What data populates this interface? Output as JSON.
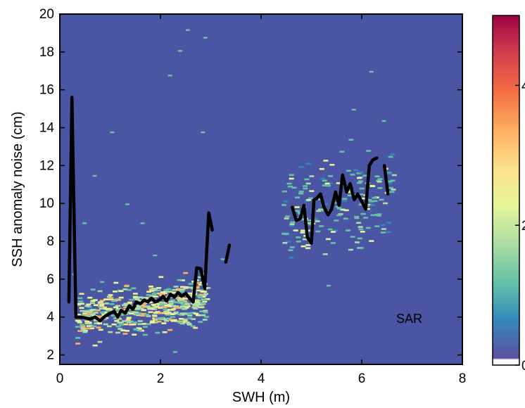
{
  "chart_data": {
    "type": "heatmap",
    "xlabel": "SWH (m)",
    "ylabel": "SSH anomaly noise (cm)",
    "xlim": [
      0,
      8
    ],
    "ylim": [
      1.5,
      20
    ],
    "xticks": [
      0,
      2,
      4,
      6,
      8
    ],
    "yticks": [
      2,
      4,
      6,
      8,
      10,
      12,
      14,
      16,
      18,
      20
    ],
    "annotation": "SAR",
    "background_color": "#4a55a3",
    "grid": false,
    "colorbar": {
      "ticks": [
        "0",
        "2",
        "4"
      ],
      "range": [
        0,
        5
      ],
      "colormap": [
        "#ffffff",
        "#5e4fa2",
        "#3288bd",
        "#66c2a5",
        "#abdda4",
        "#e6f598",
        "#fee08b",
        "#fdae61",
        "#f46d43",
        "#d53e4f",
        "#9e0142"
      ]
    },
    "density_clusters": [
      {
        "x_range": [
          0.3,
          2.9
        ],
        "y_center": 4.5,
        "y_spread": 0.9,
        "slope": 0.4,
        "intensity": "high"
      },
      {
        "x_range": [
          4.4,
          6.6
        ],
        "y_center": 10.0,
        "y_spread": 1.6,
        "slope": 0.5,
        "intensity": "low"
      }
    ],
    "series": [
      {
        "x": [
          0.18,
          0.24,
          0.32,
          0.4,
          0.5,
          0.6,
          0.7,
          0.8,
          0.9,
          1.0,
          1.08,
          1.15,
          1.22,
          1.3,
          1.38,
          1.45,
          1.52,
          1.6,
          1.68,
          1.75,
          1.82,
          1.9,
          1.98,
          2.05,
          2.12,
          2.2,
          2.28,
          2.35,
          2.42,
          2.5,
          2.58,
          2.65,
          2.72,
          2.8,
          2.88,
          2.96,
          3.03
        ],
        "y": [
          4.8,
          15.6,
          4.0,
          4.0,
          3.95,
          3.9,
          4.0,
          3.8,
          4.05,
          4.2,
          4.3,
          4.0,
          4.35,
          4.2,
          4.6,
          4.4,
          4.8,
          4.7,
          4.9,
          4.8,
          5.0,
          4.8,
          4.9,
          5.1,
          4.85,
          5.2,
          5.05,
          5.3,
          5.1,
          5.25,
          5.0,
          4.8,
          6.6,
          6.55,
          5.5,
          9.5,
          8.6
        ]
      },
      {
        "x": [
          3.3,
          3.37
        ],
        "y": [
          6.9,
          7.8
        ]
      },
      {
        "x": [
          4.62,
          4.7,
          4.78,
          4.85,
          4.92,
          5.0,
          5.05,
          5.1,
          5.18,
          5.25,
          5.33,
          5.4,
          5.48,
          5.55,
          5.62,
          5.7,
          5.77,
          5.85,
          5.92,
          6.0,
          6.08,
          6.15,
          6.22,
          6.3
        ],
        "y": [
          9.8,
          9.1,
          9.2,
          9.9,
          8.2,
          7.9,
          10.2,
          10.25,
          10.5,
          9.8,
          9.4,
          9.7,
          10.6,
          9.9,
          11.5,
          10.6,
          11.05,
          10.2,
          10.5,
          10.1,
          9.7,
          12.0,
          12.3,
          12.4
        ]
      },
      {
        "x": [
          6.45,
          6.52
        ],
        "y": [
          12.0,
          10.5
        ]
      }
    ]
  }
}
